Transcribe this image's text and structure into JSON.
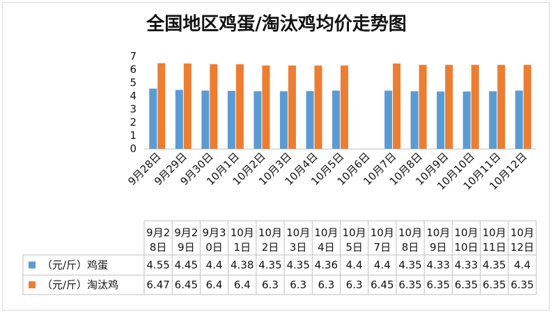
{
  "chart_data": {
    "type": "bar",
    "title": "全国地区鸡蛋/淘汰鸡均价走势图",
    "categories": [
      "9月28日",
      "9月29日",
      "9月30日",
      "10月1日",
      "10月2日",
      "10月3日",
      "10月4日",
      "10月5日",
      "10月6日",
      "10月7日",
      "10月8日",
      "10月9日",
      "10月10日",
      "10月11日",
      "10月12日"
    ],
    "ylim": [
      0,
      7
    ],
    "yticks": [
      0,
      1,
      2,
      3,
      4,
      5,
      6,
      7
    ],
    "series": [
      {
        "name": "（元/斤）鸡蛋",
        "color": "#5b9bd5",
        "values": [
          4.55,
          4.45,
          4.4,
          4.38,
          4.35,
          4.35,
          4.36,
          4.4,
          null,
          4.4,
          4.35,
          4.33,
          4.33,
          4.35,
          4.4
        ]
      },
      {
        "name": "（元/斤）淘汰鸡",
        "color": "#ed7d31",
        "values": [
          6.47,
          6.45,
          6.4,
          6.4,
          6.3,
          6.3,
          6.3,
          6.3,
          null,
          6.45,
          6.35,
          6.35,
          6.35,
          6.35,
          6.35
        ]
      }
    ],
    "table": {
      "headers": [
        [
          "9月2",
          "8日"
        ],
        [
          "9月2",
          "9日"
        ],
        [
          "9月3",
          "0日"
        ],
        [
          "10月",
          "1日"
        ],
        [
          "10月",
          "2日"
        ],
        [
          "10月",
          "3日"
        ],
        [
          "10月",
          "4日"
        ],
        [
          "10月",
          "5日"
        ],
        [
          "10月",
          "7日"
        ],
        [
          "10月",
          "8日"
        ],
        [
          "10月",
          "9日"
        ],
        [
          "10月",
          "10日"
        ],
        [
          "10月",
          "11日"
        ],
        [
          "10月",
          "12日"
        ]
      ],
      "rows": [
        {
          "label": "（元/斤）鸡蛋",
          "cells": [
            "4.55",
            "4.45",
            "4.4",
            "4.38",
            "4.35",
            "4.35",
            "4.36",
            "4.4",
            "4.4",
            "4.35",
            "4.33",
            "4.33",
            "4.35",
            "4.4"
          ]
        },
        {
          "label": "（元/斤）淘汰鸡",
          "cells": [
            "6.47",
            "6.45",
            "6.4",
            "6.4",
            "6.3",
            "6.3",
            "6.3",
            "6.3",
            "6.45",
            "6.35",
            "6.35",
            "6.35",
            "6.35",
            "6.35"
          ]
        }
      ]
    },
    "grid": false,
    "legend": "table-left"
  }
}
